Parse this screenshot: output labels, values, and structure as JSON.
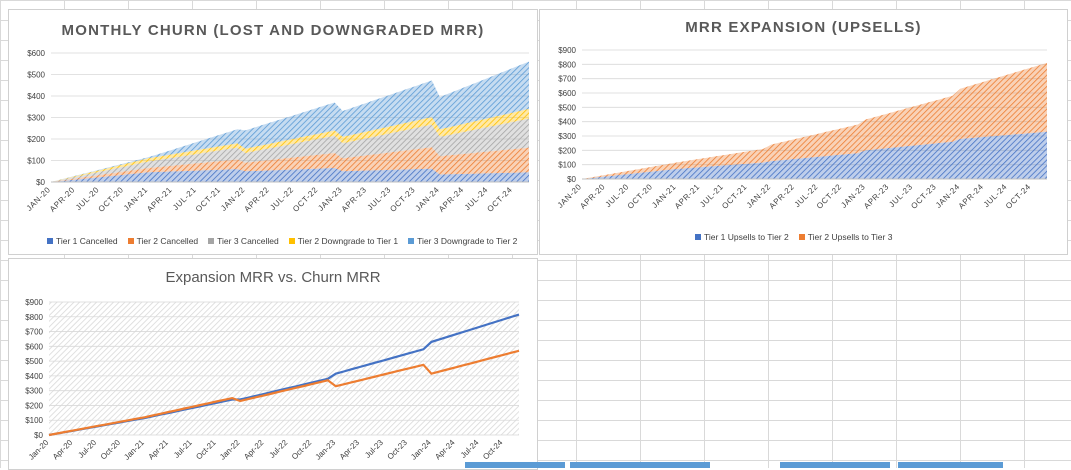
{
  "chart_data": [
    {
      "type": "area",
      "stacked": true,
      "title": "MONTHLY CHURN (LOST AND DOWNGRADED MRR)",
      "x_ticks": [
        "JAN-20",
        "APR-20",
        "JUL-20",
        "OCT-20",
        "JAN-21",
        "APR-21",
        "JUL-21",
        "OCT-21",
        "JAN-22",
        "APR-22",
        "JUL-22",
        "OCT-22",
        "JAN-23",
        "APR-23",
        "JUL-23",
        "OCT-23",
        "JAN-24",
        "APR-24",
        "JUL-24",
        "OCT-24"
      ],
      "y_ticks": [
        "$0",
        "$100",
        "$200",
        "$300",
        "$400",
        "$500",
        "$600"
      ],
      "ylim": [
        0,
        600
      ],
      "n_months": 60,
      "legend_position": "bottom",
      "series": [
        {
          "name": "Tier 1 Cancelled",
          "color": "#4472C4",
          "anchors": [
            [
              0,
              0
            ],
            [
              12,
              45
            ],
            [
              23,
              60
            ],
            [
              24,
              50
            ],
            [
              35,
              65
            ],
            [
              36,
              50
            ],
            [
              47,
              62
            ],
            [
              48,
              35
            ],
            [
              59,
              45
            ]
          ]
        },
        {
          "name": "Tier 2 Cancelled",
          "color": "#ED7D31",
          "anchors": [
            [
              0,
              0
            ],
            [
              12,
              20
            ],
            [
              23,
              45
            ],
            [
              24,
              40
            ],
            [
              35,
              70
            ],
            [
              36,
              60
            ],
            [
              47,
              100
            ],
            [
              48,
              85
            ],
            [
              59,
              115
            ]
          ]
        },
        {
          "name": "Tier 3 Cancelled",
          "color": "#A5A5A5",
          "anchors": [
            [
              0,
              0
            ],
            [
              12,
              30
            ],
            [
              23,
              55
            ],
            [
              24,
              45
            ],
            [
              35,
              80
            ],
            [
              36,
              70
            ],
            [
              47,
              105
            ],
            [
              48,
              90
            ],
            [
              59,
              135
            ]
          ]
        },
        {
          "name": "Tier 2 Downgrade to Tier 1",
          "color": "#FFC000",
          "anchors": [
            [
              0,
              0
            ],
            [
              12,
              15
            ],
            [
              23,
              20
            ],
            [
              24,
              20
            ],
            [
              35,
              25
            ],
            [
              36,
              30
            ],
            [
              47,
              35
            ],
            [
              48,
              35
            ],
            [
              59,
              45
            ]
          ]
        },
        {
          "name": "Tier 3 Downgrade to Tier 2",
          "color": "#5B9BD5",
          "anchors": [
            [
              0,
              0
            ],
            [
              12,
              5
            ],
            [
              23,
              65
            ],
            [
              24,
              85
            ],
            [
              35,
              130
            ],
            [
              36,
              120
            ],
            [
              47,
              170
            ],
            [
              48,
              150
            ],
            [
              59,
              220
            ]
          ]
        }
      ]
    },
    {
      "type": "area",
      "stacked": true,
      "title": "MRR EXPANSION (UPSELLS)",
      "x_ticks": [
        "JAN-20",
        "APR-20",
        "JUL-20",
        "OCT-20",
        "JAN-21",
        "APR-21",
        "JUL-21",
        "OCT-21",
        "JAN-22",
        "APR-22",
        "JUL-22",
        "OCT-22",
        "JAN-23",
        "APR-23",
        "JUL-23",
        "OCT-23",
        "JAN-24",
        "APR-24",
        "JUL-24",
        "OCT-24"
      ],
      "y_ticks": [
        "$0",
        "$100",
        "$200",
        "$300",
        "$400",
        "$500",
        "$600",
        "$700",
        "$800",
        "$900"
      ],
      "ylim": [
        0,
        900
      ],
      "n_months": 60,
      "legend_position": "bottom",
      "series": [
        {
          "name": "Tier 1 Upsells to Tier 2",
          "color": "#4472C4",
          "anchors": [
            [
              0,
              0
            ],
            [
              12,
              70
            ],
            [
              23,
              115
            ],
            [
              24,
              125
            ],
            [
              35,
              180
            ],
            [
              36,
              200
            ],
            [
              47,
              260
            ],
            [
              48,
              280
            ],
            [
              59,
              330
            ]
          ]
        },
        {
          "name": "Tier 2 Upsells to Tier 3",
          "color": "#ED7D31",
          "anchors": [
            [
              0,
              0
            ],
            [
              12,
              45
            ],
            [
              23,
              95
            ],
            [
              24,
              115
            ],
            [
              35,
              200
            ],
            [
              36,
              215
            ],
            [
              47,
              320
            ],
            [
              48,
              350
            ],
            [
              59,
              480
            ]
          ]
        }
      ]
    },
    {
      "type": "line",
      "title": "Expansion MRR vs. Churn MRR",
      "x_ticks": [
        "Jan-20",
        "Apr-20",
        "Jul-20",
        "Oct-20",
        "Jan-21",
        "Apr-21",
        "Jul-21",
        "Oct-21",
        "Jan-22",
        "Apr-22",
        "Jul-22",
        "Oct-22",
        "Jan-23",
        "Apr-23",
        "Jul-23",
        "Oct-23",
        "Jan-24",
        "Apr-24",
        "Jul-24",
        "Oct-24"
      ],
      "y_ticks": [
        "$0",
        "$100",
        "$200",
        "$300",
        "$400",
        "$500",
        "$600",
        "$700",
        "$800",
        "$900"
      ],
      "ylim": [
        0,
        900
      ],
      "n_months": 60,
      "series": [
        {
          "color": "#4472C4",
          "anchors": [
            [
              0,
              0
            ],
            [
              12,
              115
            ],
            [
              23,
              240
            ],
            [
              24,
              240
            ],
            [
              35,
              380
            ],
            [
              36,
              415
            ],
            [
              47,
              580
            ],
            [
              48,
              630
            ],
            [
              59,
              815
            ]
          ]
        },
        {
          "color": "#ED7D31",
          "anchors": [
            [
              0,
              0
            ],
            [
              12,
              120
            ],
            [
              23,
              250
            ],
            [
              24,
              230
            ],
            [
              35,
              370
            ],
            [
              36,
              330
            ],
            [
              47,
              475
            ],
            [
              48,
              415
            ],
            [
              59,
              570
            ]
          ]
        }
      ]
    }
  ]
}
